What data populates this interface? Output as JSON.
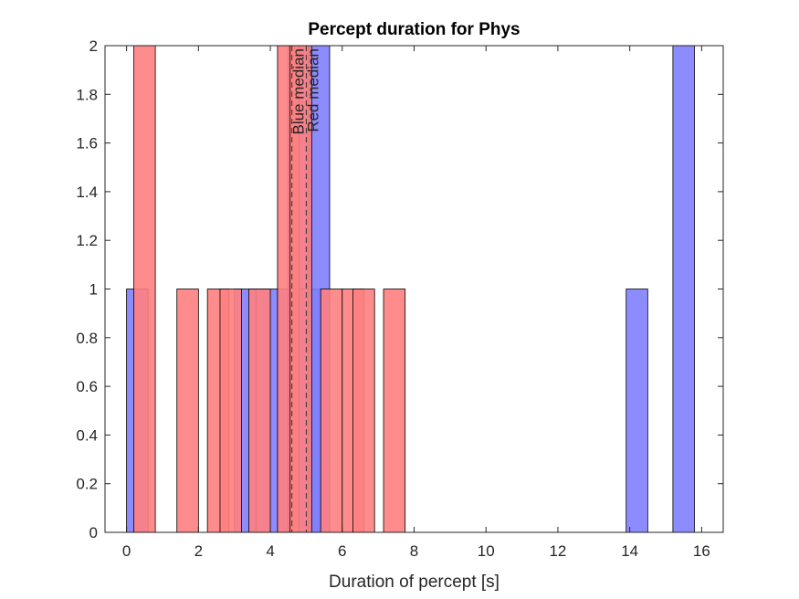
{
  "chart_data": {
    "type": "bar",
    "title": "Percept duration for Phys",
    "xlabel": "Duration of percept [s]",
    "ylabel": "",
    "xlim": [
      -0.6,
      16.6
    ],
    "ylim": [
      0,
      2
    ],
    "xticks": [
      0,
      2,
      4,
      6,
      8,
      10,
      12,
      14,
      16
    ],
    "yticks": [
      0,
      0.2,
      0.4,
      0.6,
      0.8,
      1,
      1.2,
      1.4,
      1.6,
      1.8,
      2
    ],
    "grid": false,
    "bar_width": 0.6,
    "series": [
      {
        "color": "#8080ff",
        "bars": [
          {
            "x": 0.3,
            "value": 1
          },
          {
            "x": 3.3,
            "value": 1
          },
          {
            "x": 3.9,
            "value": 1
          },
          {
            "x": 4.5,
            "value": 1
          },
          {
            "x": 4.8,
            "value": 2
          },
          {
            "x": 5.1,
            "value": 1
          },
          {
            "x": 5.35,
            "value": 2
          },
          {
            "x": 14.2,
            "value": 1
          },
          {
            "x": 15.5,
            "value": 2
          }
        ]
      },
      {
        "color": "#ff8080",
        "bars": [
          {
            "x": 0.5,
            "value": 2
          },
          {
            "x": 1.7,
            "value": 1
          },
          {
            "x": 2.55,
            "value": 1
          },
          {
            "x": 2.9,
            "value": 1
          },
          {
            "x": 3.7,
            "value": 1
          },
          {
            "x": 4.5,
            "value": 2
          },
          {
            "x": 4.85,
            "value": 2
          },
          {
            "x": 5.7,
            "value": 1
          },
          {
            "x": 6.3,
            "value": 1
          },
          {
            "x": 6.6,
            "value": 1
          },
          {
            "x": 7.45,
            "value": 1
          }
        ]
      }
    ],
    "annotations": [
      {
        "label": "Blue median",
        "x": 4.6,
        "color": "#0000ff"
      },
      {
        "label": "Red median",
        "x": 5.0,
        "color": "#ff0000"
      }
    ]
  }
}
